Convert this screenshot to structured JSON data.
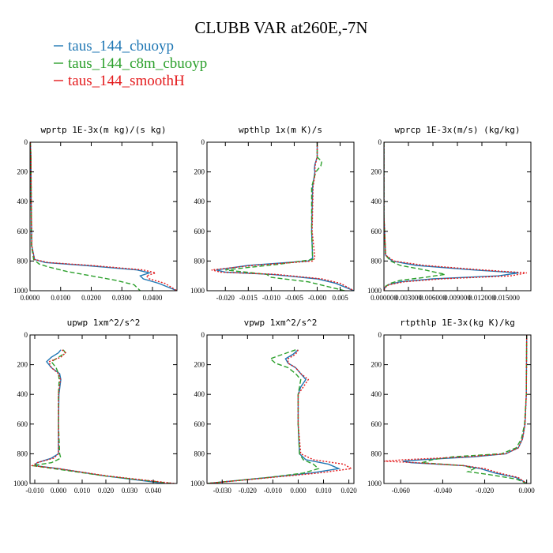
{
  "title": "CLUBB VAR at260E,-7N",
  "legend": [
    {
      "label": "taus_144_cbuoyp",
      "color": "#1f77b4",
      "dash": "solid"
    },
    {
      "label": "taus_144_c8m_cbuoyp",
      "color": "#2ca02c",
      "dash": "dashed"
    },
    {
      "label": "taus_144_smoothH",
      "color": "#e41a1c",
      "dash": "dotted"
    }
  ],
  "chart_data": [
    {
      "type": "line",
      "title": "wprtp  1E-3x(m kg)/(s kg)",
      "xlim": [
        0.0,
        0.048
      ],
      "ylim": [
        1000,
        0
      ],
      "y_inverted": true,
      "xticks": [
        0.0,
        0.01,
        0.02,
        0.03,
        0.04
      ],
      "xtick_labels": [
        "0.0000",
        "0.0100",
        "0.0200",
        "0.0300",
        "0.0400"
      ],
      "yticks": [
        0,
        200,
        400,
        600,
        800,
        1000
      ],
      "ytick_labels": [
        "0",
        "200",
        "400",
        "600",
        "800",
        "1000"
      ],
      "series": [
        {
          "name": "taus_144_cbuoyp",
          "y": [
            0,
            100,
            400,
            700,
            790,
            810,
            830,
            860,
            880,
            900,
            920,
            950,
            1000
          ],
          "x": [
            0.0001,
            0.0003,
            0.0004,
            0.0006,
            0.0015,
            0.005,
            0.018,
            0.035,
            0.039,
            0.036,
            0.037,
            0.042,
            0.048
          ]
        },
        {
          "name": "taus_144_c8m_cbuoyp",
          "y": [
            0,
            100,
            400,
            700,
            790,
            820,
            840,
            870,
            900,
            930,
            960,
            1000
          ],
          "x": [
            0.0001,
            0.0003,
            0.0004,
            0.0005,
            0.0012,
            0.003,
            0.006,
            0.012,
            0.02,
            0.028,
            0.034,
            0.036
          ]
        },
        {
          "name": "taus_144_smoothH",
          "y": [
            0,
            100,
            400,
            700,
            790,
            810,
            830,
            860,
            880,
            900,
            920,
            950,
            1000
          ],
          "x": [
            0.0001,
            0.0003,
            0.0004,
            0.0006,
            0.0015,
            0.006,
            0.02,
            0.037,
            0.041,
            0.038,
            0.039,
            0.044,
            0.048
          ]
        }
      ]
    },
    {
      "type": "line",
      "title": "wpthlp  1x(m K)/s",
      "xlim": [
        -0.024,
        0.008
      ],
      "ylim": [
        1000,
        0
      ],
      "y_inverted": true,
      "xticks": [
        -0.02,
        -0.015,
        -0.01,
        -0.005,
        0.0,
        0.005
      ],
      "xtick_labels": [
        "-0.020",
        "-0.015",
        "-0.010",
        "-0.005",
        "-0.000",
        "0.005"
      ],
      "yticks": [
        0,
        200,
        400,
        600,
        800,
        1000
      ],
      "ytick_labels": [
        "0",
        "200",
        "400",
        "600",
        "800",
        "1000"
      ],
      "series": [
        {
          "name": "taus_144_cbuoyp",
          "y": [
            0,
            100,
            150,
            180,
            200,
            300,
            600,
            780,
            800,
            830,
            860,
            875,
            890,
            920,
            950,
            1000
          ],
          "x": [
            0.0,
            0.0,
            -0.0005,
            -0.0006,
            -0.0005,
            -0.001,
            -0.0012,
            -0.001,
            -0.002,
            -0.015,
            -0.022,
            -0.02,
            -0.01,
            0.0,
            0.004,
            0.008
          ]
        },
        {
          "name": "taus_144_c8m_cbuoyp",
          "y": [
            0,
            100,
            130,
            160,
            200,
            300,
            600,
            790,
            820,
            860,
            890,
            910,
            940,
            1000
          ],
          "x": [
            0.0,
            0.0,
            0.001,
            0.0008,
            -0.0003,
            -0.0012,
            -0.0012,
            -0.001,
            -0.008,
            -0.02,
            -0.011,
            -0.01,
            -0.002,
            0.006
          ]
        },
        {
          "name": "taus_144_smoothH",
          "y": [
            0,
            100,
            150,
            180,
            200,
            300,
            600,
            780,
            800,
            830,
            860,
            875,
            890,
            920,
            950,
            1000
          ],
          "x": [
            0.0,
            0.0,
            -0.0004,
            -0.0005,
            -0.0004,
            -0.0009,
            -0.0011,
            -0.0005,
            -0.001,
            -0.014,
            -0.023,
            -0.021,
            -0.009,
            0.001,
            0.005,
            0.008
          ]
        }
      ]
    },
    {
      "type": "line",
      "title": "wprcp  1E-3x(m/s) (kg/kg)",
      "xlim": [
        0.0,
        0.018
      ],
      "ylim": [
        1000,
        0
      ],
      "y_inverted": true,
      "xticks": [
        0.0,
        0.003,
        0.006,
        0.009,
        0.012,
        0.015
      ],
      "xtick_labels": [
        "0.000000",
        "0.003000",
        "0.006000",
        "0.009000",
        "0.012000",
        "0.015000"
      ],
      "yticks": [
        0,
        200,
        400,
        600,
        800,
        1000
      ],
      "ytick_labels": [
        "0",
        "200",
        "400",
        "600",
        "800",
        "1000"
      ],
      "series": [
        {
          "name": "taus_144_cbuoyp",
          "y": [
            0,
            500,
            760,
            800,
            830,
            860,
            880,
            900,
            920,
            940,
            960,
            980,
            1000
          ],
          "x": [
            0.0,
            0.0,
            0.0002,
            0.001,
            0.004,
            0.011,
            0.0165,
            0.014,
            0.006,
            0.002,
            0.0005,
            0.0001,
            0.0
          ]
        },
        {
          "name": "taus_144_c8m_cbuoyp",
          "y": [
            0,
            500,
            760,
            800,
            830,
            860,
            890,
            910,
            930,
            950,
            970,
            1000
          ],
          "x": [
            0.0,
            0.0,
            0.0002,
            0.0008,
            0.002,
            0.005,
            0.0075,
            0.005,
            0.002,
            0.0008,
            0.0002,
            0.0
          ]
        },
        {
          "name": "taus_144_smoothH",
          "y": [
            0,
            500,
            760,
            800,
            830,
            860,
            880,
            900,
            920,
            940,
            960,
            980,
            1000
          ],
          "x": [
            0.0,
            0.0,
            0.0002,
            0.0012,
            0.005,
            0.012,
            0.0175,
            0.0155,
            0.007,
            0.0025,
            0.0006,
            0.0001,
            0.0
          ]
        }
      ]
    },
    {
      "type": "line",
      "title": "upwp  1xm^2/s^2",
      "xlim": [
        -0.012,
        0.05
      ],
      "ylim": [
        1000,
        0
      ],
      "y_inverted": true,
      "xticks": [
        -0.01,
        0.0,
        0.01,
        0.02,
        0.03,
        0.04
      ],
      "xtick_labels": [
        "-0.010",
        "0.000",
        "0.010",
        "0.020",
        "0.030",
        "0.040"
      ],
      "yticks": [
        0,
        200,
        400,
        600,
        800,
        1000
      ],
      "ytick_labels": [
        "0",
        "200",
        "400",
        "600",
        "800",
        "1000"
      ],
      "series": [
        {
          "name": "taus_144_cbuoyp",
          "y": [
            100,
            120,
            150,
            180,
            220,
            260,
            300,
            400,
            600,
            800,
            830,
            860,
            880,
            900,
            950,
            1000
          ],
          "x": [
            0.001,
            0.0,
            -0.003,
            -0.005,
            -0.003,
            0.0005,
            0.001,
            0.0002,
            0.0,
            0.0,
            -0.003,
            -0.009,
            -0.01,
            0.0,
            0.02,
            0.045
          ]
        },
        {
          "name": "taus_144_c8m_cbuoyp",
          "y": [
            100,
            120,
            150,
            180,
            220,
            260,
            300,
            400,
            600,
            800,
            830,
            860,
            880,
            900,
            950,
            1000
          ],
          "x": [
            0.002,
            0.003,
            0.0,
            -0.003,
            -0.001,
            0.0,
            0.0003,
            0.0,
            0.0,
            0.0005,
            0.001,
            -0.003,
            -0.011,
            -0.002,
            0.02,
            0.048
          ]
        },
        {
          "name": "taus_144_smoothH",
          "y": [
            100,
            120,
            150,
            180,
            220,
            260,
            300,
            400,
            600,
            800,
            830,
            860,
            880,
            900,
            950,
            1000
          ],
          "x": [
            0.0015,
            0.003,
            0.001,
            -0.004,
            -0.003,
            0.0,
            0.0008,
            0.0,
            0.0,
            0.0,
            -0.002,
            -0.009,
            -0.011,
            0.0,
            0.021,
            0.049
          ]
        }
      ]
    },
    {
      "type": "line",
      "title": "vpwp  1xm^2/s^2",
      "xlim": [
        -0.036,
        0.022
      ],
      "ylim": [
        1000,
        0
      ],
      "y_inverted": true,
      "xticks": [
        -0.03,
        -0.02,
        -0.01,
        0.0,
        0.01,
        0.02
      ],
      "xtick_labels": [
        "-0.030",
        "-0.020",
        "-0.010",
        "0.000",
        "0.010",
        "0.020"
      ],
      "yticks": [
        0,
        200,
        400,
        600,
        800,
        1000
      ],
      "ytick_labels": [
        "0",
        "200",
        "400",
        "600",
        "800",
        "1000"
      ],
      "series": [
        {
          "name": "taus_144_cbuoyp",
          "y": [
            100,
            130,
            160,
            190,
            220,
            260,
            300,
            350,
            400,
            600,
            800,
            840,
            870,
            900,
            930,
            960,
            1000
          ],
          "x": [
            0.0,
            -0.002,
            -0.005,
            -0.004,
            -0.001,
            0.001,
            0.003,
            0.001,
            0.0,
            0.0,
            0.0005,
            0.003,
            0.012,
            0.016,
            0.005,
            -0.012,
            -0.036
          ]
        },
        {
          "name": "taus_144_c8m_cbuoyp",
          "y": [
            100,
            130,
            160,
            190,
            220,
            260,
            300,
            350,
            400,
            600,
            800,
            840,
            870,
            900,
            930,
            960,
            1000
          ],
          "x": [
            -0.001,
            -0.006,
            -0.011,
            -0.009,
            -0.004,
            -0.001,
            0.001,
            0.0005,
            0.0,
            0.0,
            0.0005,
            0.002,
            0.006,
            0.008,
            0.002,
            -0.012,
            -0.036
          ]
        },
        {
          "name": "taus_144_smoothH",
          "y": [
            100,
            130,
            160,
            190,
            220,
            260,
            300,
            350,
            400,
            600,
            800,
            840,
            870,
            900,
            930,
            960,
            1000
          ],
          "x": [
            0.0,
            -0.001,
            -0.004,
            -0.004,
            -0.001,
            0.001,
            0.004,
            0.002,
            0.0,
            0.0,
            0.001,
            0.006,
            0.018,
            0.021,
            0.008,
            -0.011,
            -0.036
          ]
        }
      ]
    },
    {
      "type": "line",
      "title": "rtpthlp  1E-3x(kg K)/kg",
      "xlim": [
        -0.068,
        0.002
      ],
      "ylim": [
        1000,
        0
      ],
      "y_inverted": true,
      "xticks": [
        -0.06,
        -0.04,
        -0.02,
        0.0
      ],
      "xtick_labels": [
        "-0.060",
        "-0.040",
        "-0.020",
        "0.000"
      ],
      "yticks": [
        0,
        200,
        400,
        600,
        800,
        1000
      ],
      "ytick_labels": [
        "0",
        "200",
        "400",
        "600",
        "800",
        "1000"
      ],
      "series": [
        {
          "name": "taus_144_cbuoyp",
          "y": [
            0,
            400,
            600,
            700,
            760,
            800,
            820,
            840,
            850,
            860,
            880,
            900,
            930,
            960,
            990,
            1000
          ],
          "x": [
            0.0,
            -0.0002,
            -0.0008,
            -0.002,
            -0.004,
            -0.01,
            -0.025,
            -0.05,
            -0.059,
            -0.055,
            -0.03,
            -0.022,
            -0.015,
            -0.005,
            -0.001,
            0.0
          ]
        },
        {
          "name": "taus_144_c8m_cbuoyp",
          "y": [
            0,
            400,
            600,
            700,
            760,
            800,
            820,
            840,
            860,
            880,
            900,
            920,
            940,
            970,
            1000
          ],
          "x": [
            0.0,
            -0.0002,
            -0.001,
            -0.0025,
            -0.005,
            -0.012,
            -0.035,
            -0.045,
            -0.05,
            -0.03,
            -0.025,
            -0.028,
            -0.018,
            -0.005,
            0.0
          ]
        },
        {
          "name": "taus_144_smoothH",
          "y": [
            0,
            400,
            600,
            700,
            760,
            800,
            820,
            840,
            850,
            860,
            880,
            900,
            930,
            960,
            990,
            1000
          ],
          "x": [
            0.0,
            -0.0002,
            -0.0008,
            -0.002,
            -0.004,
            -0.01,
            -0.028,
            -0.058,
            -0.068,
            -0.052,
            -0.03,
            -0.02,
            -0.013,
            -0.004,
            -0.001,
            0.0
          ]
        }
      ]
    }
  ]
}
